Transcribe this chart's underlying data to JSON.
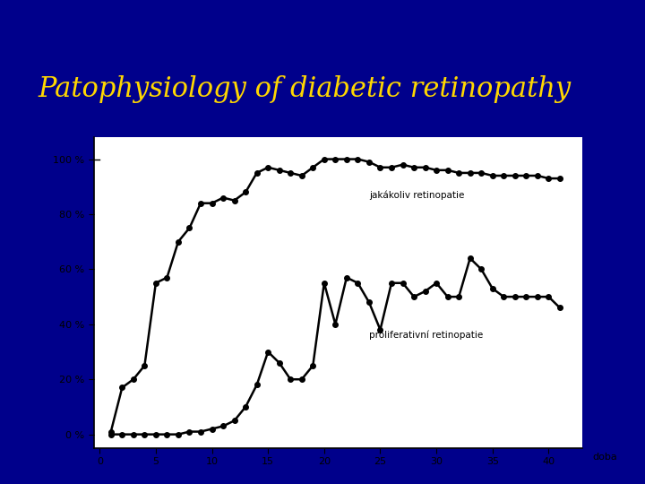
{
  "title": "Patophysiology of diabetic retinopathy",
  "title_color": "#FFD700",
  "title_bg_color": "#0000FF",
  "bg_color": "#00008B",
  "chart_bg_color": "#FFFFFF",
  "xlabel": "doba",
  "ylabel_ticks": [
    "0 %",
    "20 %",
    "40 %",
    "60 %",
    "80 %",
    "100 %"
  ],
  "yticks": [
    0,
    20,
    40,
    60,
    80,
    100
  ],
  "xticks": [
    0,
    5,
    10,
    15,
    20,
    25,
    30,
    35,
    40
  ],
  "xlim": [
    -0.5,
    43
  ],
  "ylim": [
    -5,
    108
  ],
  "line1_label": "jakákoliv retinopatie",
  "line2_label": "proliferativní retinopatie",
  "line1_x": [
    1,
    2,
    3,
    4,
    5,
    6,
    7,
    8,
    9,
    10,
    11,
    12,
    13,
    14,
    15,
    16,
    17,
    18,
    19,
    20,
    21,
    22,
    23,
    24,
    25,
    26,
    27,
    28,
    29,
    30,
    31,
    32,
    33,
    34,
    35,
    36,
    37,
    38,
    39,
    40,
    41
  ],
  "line1_y": [
    1,
    17,
    20,
    25,
    55,
    57,
    70,
    75,
    84,
    84,
    86,
    85,
    88,
    95,
    97,
    96,
    95,
    94,
    97,
    100,
    100,
    100,
    100,
    99,
    97,
    97,
    98,
    97,
    97,
    96,
    96,
    95,
    95,
    95,
    94,
    94,
    94,
    94,
    94,
    93,
    93
  ],
  "line2_x": [
    1,
    2,
    3,
    4,
    5,
    6,
    7,
    8,
    9,
    10,
    11,
    12,
    13,
    14,
    15,
    16,
    17,
    18,
    19,
    20,
    21,
    22,
    23,
    24,
    25,
    26,
    27,
    28,
    29,
    30,
    31,
    32,
    33,
    34,
    35,
    36,
    37,
    38,
    39,
    40,
    41
  ],
  "line2_y": [
    0,
    0,
    0,
    0,
    0,
    0,
    0,
    1,
    1,
    2,
    3,
    5,
    10,
    18,
    30,
    26,
    20,
    20,
    25,
    55,
    40,
    57,
    55,
    48,
    38,
    55,
    55,
    50,
    52,
    55,
    50,
    50,
    64,
    60,
    53,
    50,
    50,
    50,
    50,
    50,
    46
  ],
  "line_color": "#000000",
  "marker": "o",
  "marker_size": 4,
  "line_width": 1.8,
  "title_fontsize": 22,
  "label_fontsize": 7.5,
  "tick_fontsize": 8
}
